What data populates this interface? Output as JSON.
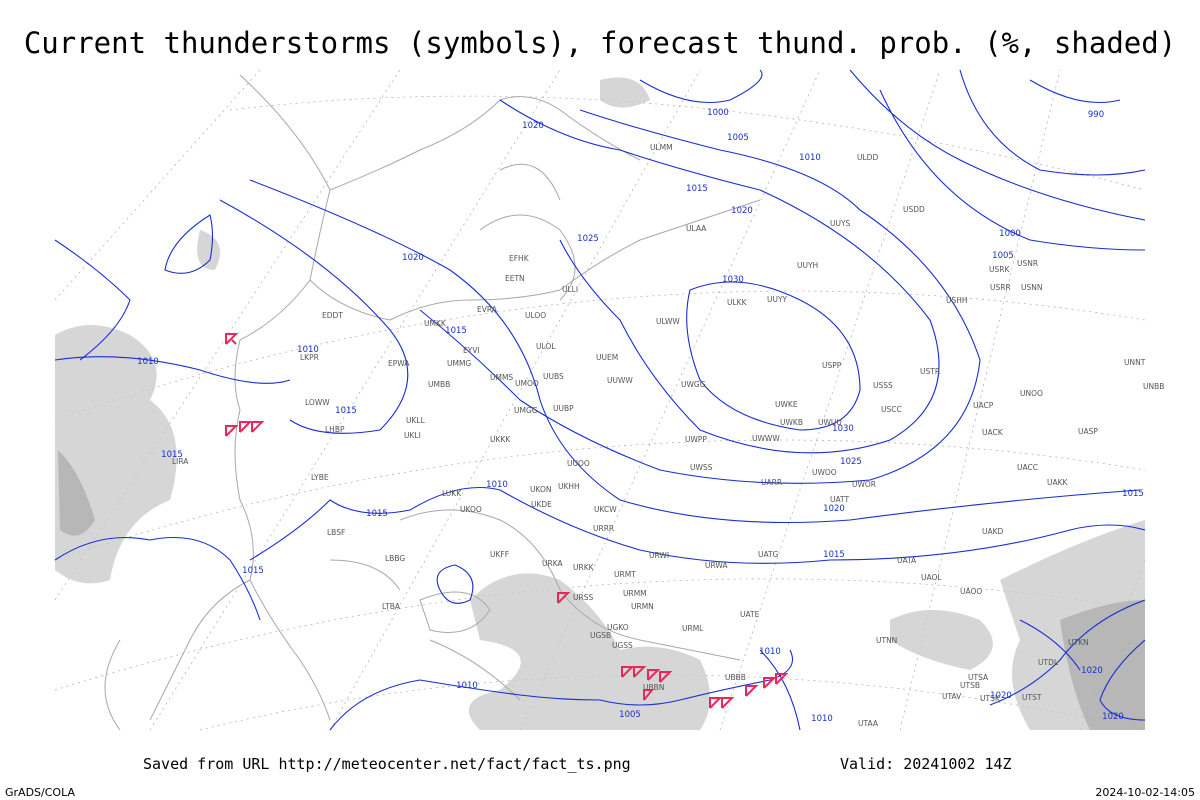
{
  "header": {
    "title": "Current thunderstorms (symbols), forecast thund. prob. (%, shaded)"
  },
  "footer": {
    "source": "Saved from URL http://meteocenter.net/fact/fact_ts.png",
    "valid": "Valid: 20241002 14Z",
    "software": "GrADS/COLA",
    "timestamp": "2024-10-02-14:05"
  },
  "isobar_labels": [
    "1020",
    "1000",
    "1005",
    "1010",
    "1015",
    "1020",
    "1025",
    "1030",
    "1000",
    "1005",
    "990",
    "1020",
    "1015",
    "1010",
    "1010",
    "1015",
    "1030",
    "1025",
    "1020",
    "1015",
    "1010",
    "1015",
    "1015",
    "1015",
    "1015",
    "1010",
    "1010",
    "1005",
    "1010",
    "1020",
    "1020",
    "1020"
  ],
  "stations": [
    "ULMM",
    "ULDD",
    "ULAA",
    "UUYS",
    "UUYH",
    "ULKK",
    "UUYY",
    "USSS",
    "USCC",
    "USPP",
    "USTR",
    "UWKE",
    "UWKB",
    "UWUU",
    "UWWW",
    "UWPP",
    "UWGG",
    "UWSS",
    "UARR",
    "UWOO",
    "UATT",
    "UWOR",
    "UACC",
    "UAKK",
    "UASP",
    "UACK",
    "UACP",
    "UNOO",
    "USHH",
    "USRR",
    "USNN",
    "USRK",
    "USNR",
    "USDD",
    "ULLI",
    "EFHK",
    "EETN",
    "EVRA",
    "EYVI",
    "ULOL",
    "UMMG",
    "UMMS",
    "UMOO",
    "UUBS",
    "UUEM",
    "UUWW",
    "UMGG",
    "UUBP",
    "UKKK",
    "UUOO",
    "UKHH",
    "UKON",
    "UKCW",
    "URRR",
    "UKDE",
    "UKOO",
    "UKFF",
    "URKA",
    "URKK",
    "URSS",
    "UGSB",
    "UGKO",
    "UGSS",
    "UBBN",
    "UBBB",
    "URMM",
    "URMN",
    "URMT",
    "URWI",
    "URWA",
    "UATG",
    "UATE",
    "URML",
    "UTAA",
    "UTNN",
    "UAOL",
    "UATA",
    "UAOO",
    "UAKD",
    "UTSA",
    "UTSB",
    "UTAV",
    "UTSK",
    "UTST",
    "UTDL",
    "UTKN",
    "UNNT",
    "UNBB",
    "ULWW",
    "EDDT",
    "EPWA",
    "LKPR",
    "LOWW",
    "LHBP",
    "LYBE",
    "LBSF",
    "LBBG",
    "LIRA",
    "LTBA",
    "UKLL",
    "UKLI",
    "UMBB",
    "LUKK",
    "UMKK",
    "ULOO"
  ]
}
